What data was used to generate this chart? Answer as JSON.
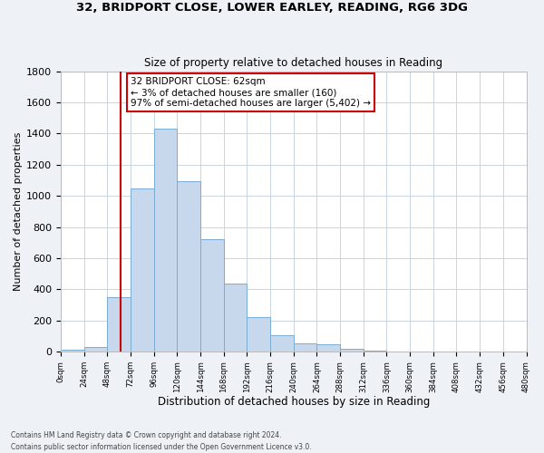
{
  "title1": "32, BRIDPORT CLOSE, LOWER EARLEY, READING, RG6 3DG",
  "title2": "Size of property relative to detached houses in Reading",
  "xlabel": "Distribution of detached houses by size in Reading",
  "ylabel": "Number of detached properties",
  "bar_color": "#c8d8ec",
  "bar_edge_color": "#7aadd4",
  "bin_edges": [
    0,
    24,
    48,
    72,
    96,
    120,
    144,
    168,
    192,
    216,
    240,
    264,
    288,
    312,
    336,
    360,
    384,
    408,
    432,
    456,
    480
  ],
  "bar_heights": [
    15,
    30,
    350,
    1050,
    1430,
    1095,
    725,
    435,
    220,
    105,
    55,
    50,
    18,
    5,
    2,
    1,
    0,
    0,
    0,
    0
  ],
  "property_line_x": 62,
  "property_line_color": "#cc0000",
  "annotation_text": "32 BRIDPORT CLOSE: 62sqm\n← 3% of detached houses are smaller (160)\n97% of semi-detached houses are larger (5,402) →",
  "annotation_box_color": "#ffffff",
  "annotation_box_edge": "#cc0000",
  "ylim": [
    0,
    1800
  ],
  "yticks": [
    0,
    200,
    400,
    600,
    800,
    1000,
    1200,
    1400,
    1600,
    1800
  ],
  "xtick_labels": [
    "0sqm",
    "24sqm",
    "48sqm",
    "72sqm",
    "96sqm",
    "120sqm",
    "144sqm",
    "168sqm",
    "192sqm",
    "216sqm",
    "240sqm",
    "264sqm",
    "288sqm",
    "312sqm",
    "336sqm",
    "360sqm",
    "384sqm",
    "408sqm",
    "432sqm",
    "456sqm",
    "480sqm"
  ],
  "footer_line1": "Contains HM Land Registry data © Crown copyright and database right 2024.",
  "footer_line2": "Contains public sector information licensed under the Open Government Licence v3.0.",
  "background_color": "#eef2f7",
  "plot_background_color": "#ffffff",
  "grid_color": "#c8d4e0"
}
